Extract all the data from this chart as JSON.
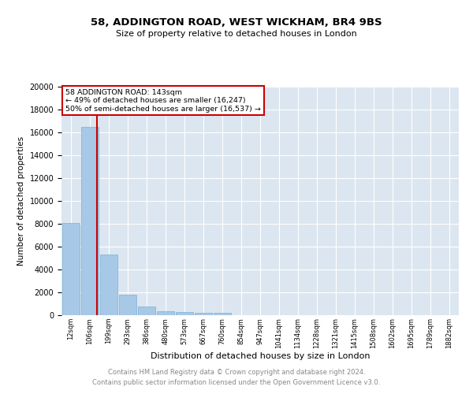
{
  "title1": "58, ADDINGTON ROAD, WEST WICKHAM, BR4 9BS",
  "title2": "Size of property relative to detached houses in London",
  "xlabel": "Distribution of detached houses by size in London",
  "ylabel": "Number of detached properties",
  "footer1": "Contains HM Land Registry data © Crown copyright and database right 2024.",
  "footer2": "Contains public sector information licensed under the Open Government Licence v3.0.",
  "annotation_line1": "58 ADDINGTON ROAD: 143sqm",
  "annotation_line2": "← 49% of detached houses are smaller (16,247)",
  "annotation_line3": "50% of semi-detached houses are larger (16,537) →",
  "bar_color": "#a8c8e8",
  "bar_edge_color": "#7ab0d4",
  "bg_color": "#dce6f0",
  "grid_color": "#ffffff",
  "red_line_color": "#cc0000",
  "annotation_box_color": "#cc0000",
  "categories": [
    "12sqm",
    "106sqm",
    "199sqm",
    "293sqm",
    "386sqm",
    "480sqm",
    "573sqm",
    "667sqm",
    "760sqm",
    "854sqm",
    "947sqm",
    "1041sqm",
    "1134sqm",
    "1228sqm",
    "1321sqm",
    "1415sqm",
    "1508sqm",
    "1602sqm",
    "1695sqm",
    "1789sqm",
    "1882sqm"
  ],
  "values": [
    8050,
    16500,
    5300,
    1820,
    750,
    360,
    285,
    235,
    175,
    0,
    0,
    0,
    0,
    0,
    0,
    0,
    0,
    0,
    0,
    0,
    0
  ],
  "red_line_x": 1.37,
  "ylim": [
    0,
    20000
  ],
  "yticks": [
    0,
    2000,
    4000,
    6000,
    8000,
    10000,
    12000,
    14000,
    16000,
    18000,
    20000
  ]
}
